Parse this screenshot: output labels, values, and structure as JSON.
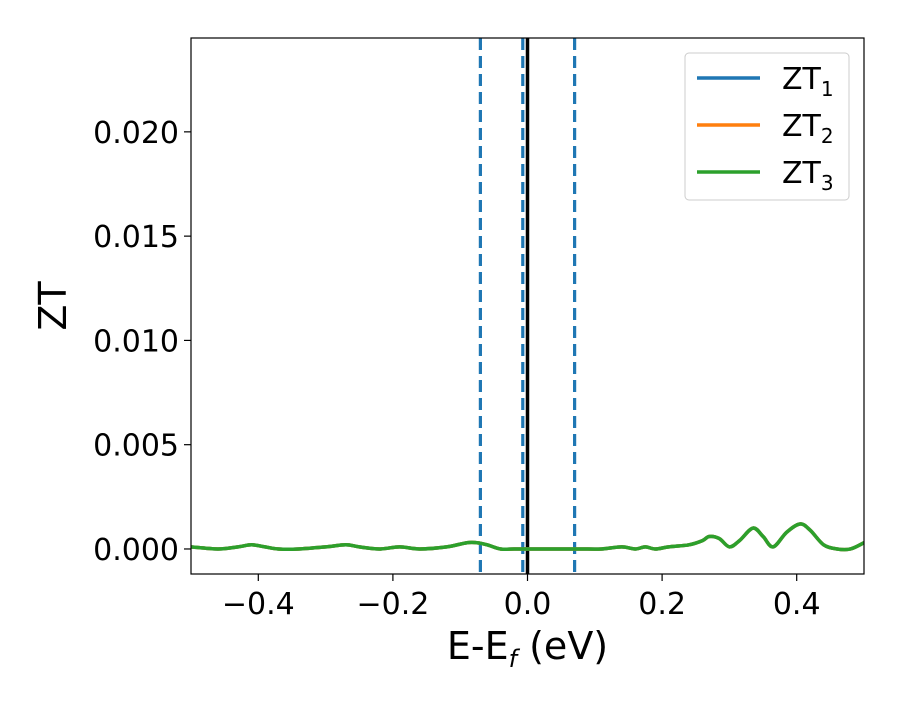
{
  "chart_data": {
    "type": "line",
    "title": "",
    "xlabel": "E-E",
    "xlabel_sub": "f",
    "xlabel_suffix": " (eV)",
    "ylabel": "ZT",
    "xlim": [
      -0.5,
      0.5
    ],
    "ylim": [
      -0.0012,
      0.0245
    ],
    "xticks": [
      -0.4,
      -0.2,
      0.0,
      0.2,
      0.4
    ],
    "xtick_labels": [
      "−0.4",
      "−0.2",
      "0.0",
      "0.2",
      "0.4"
    ],
    "yticks": [
      0.0,
      0.005,
      0.01,
      0.015,
      0.02
    ],
    "ytick_labels": [
      "0.000",
      "0.005",
      "0.010",
      "0.015",
      "0.020"
    ],
    "grid": false,
    "legend_position": "top-right",
    "vlines": [
      {
        "x": -0.07,
        "style": "dashed",
        "color": "#1f77b4"
      },
      {
        "x": -0.007,
        "style": "dashed",
        "color": "#1f77b4"
      },
      {
        "x": 0.07,
        "style": "dashed",
        "color": "#1f77b4"
      },
      {
        "x": 0.0,
        "style": "solid",
        "color": "#000000"
      }
    ],
    "x": [
      -0.5,
      -0.46,
      -0.43,
      -0.41,
      -0.39,
      -0.37,
      -0.34,
      -0.3,
      -0.27,
      -0.25,
      -0.22,
      -0.19,
      -0.16,
      -0.12,
      -0.09,
      -0.075,
      -0.06,
      -0.04,
      -0.02,
      0.0,
      0.02,
      0.05,
      0.08,
      0.11,
      0.14,
      0.16,
      0.175,
      0.19,
      0.21,
      0.24,
      0.26,
      0.27,
      0.285,
      0.3,
      0.315,
      0.335,
      0.35,
      0.365,
      0.385,
      0.405,
      0.42,
      0.44,
      0.46,
      0.48,
      0.5
    ],
    "series": [
      {
        "name": "ZT",
        "sub": "1",
        "color": "#1f77b4",
        "values": [
          0.0001,
          0.0,
          0.0001,
          0.0002,
          0.0001,
          0.0,
          0.0,
          0.0001,
          0.0002,
          0.0001,
          0.0,
          0.0001,
          0.0,
          0.0001,
          0.0003,
          0.0003,
          0.0002,
          0.0,
          0.0,
          0.0,
          0.0,
          0.0,
          0.0,
          0.0,
          0.0001,
          0.0,
          0.0001,
          0.0,
          0.0001,
          0.0002,
          0.0004,
          0.0006,
          0.0005,
          0.0001,
          0.0004,
          0.001,
          0.0006,
          0.0001,
          0.0008,
          0.0012,
          0.0009,
          0.0002,
          0.0,
          0.0,
          0.0003
        ]
      },
      {
        "name": "ZT",
        "sub": "2",
        "color": "#ff7f0e",
        "values": [
          0.0001,
          0.0,
          0.0001,
          0.0002,
          0.0001,
          0.0,
          0.0,
          0.0001,
          0.0002,
          0.0001,
          0.0,
          0.0001,
          0.0,
          0.0001,
          0.0003,
          0.0003,
          0.0002,
          0.0,
          0.0,
          0.0,
          0.0,
          0.0,
          0.0,
          0.0,
          0.0001,
          0.0,
          0.0001,
          0.0,
          0.0001,
          0.0002,
          0.0004,
          0.0006,
          0.0005,
          0.0001,
          0.0004,
          0.001,
          0.0006,
          0.0001,
          0.0008,
          0.0012,
          0.0009,
          0.0002,
          0.0,
          0.0,
          0.0003
        ]
      },
      {
        "name": "ZT",
        "sub": "3",
        "color": "#2ca02c",
        "values": [
          0.0001,
          0.0,
          0.0001,
          0.0002,
          0.0001,
          0.0,
          0.0,
          0.0001,
          0.0002,
          0.0001,
          0.0,
          0.0001,
          0.0,
          0.0001,
          0.0003,
          0.0003,
          0.0002,
          0.0,
          0.0,
          0.0,
          0.0,
          0.0,
          0.0,
          0.0,
          0.0001,
          0.0,
          0.0001,
          0.0,
          0.0001,
          0.0002,
          0.0004,
          0.0006,
          0.0005,
          0.0001,
          0.0004,
          0.001,
          0.0006,
          0.0001,
          0.0008,
          0.0012,
          0.0009,
          0.0002,
          0.0,
          0.0,
          0.0003
        ]
      }
    ]
  }
}
